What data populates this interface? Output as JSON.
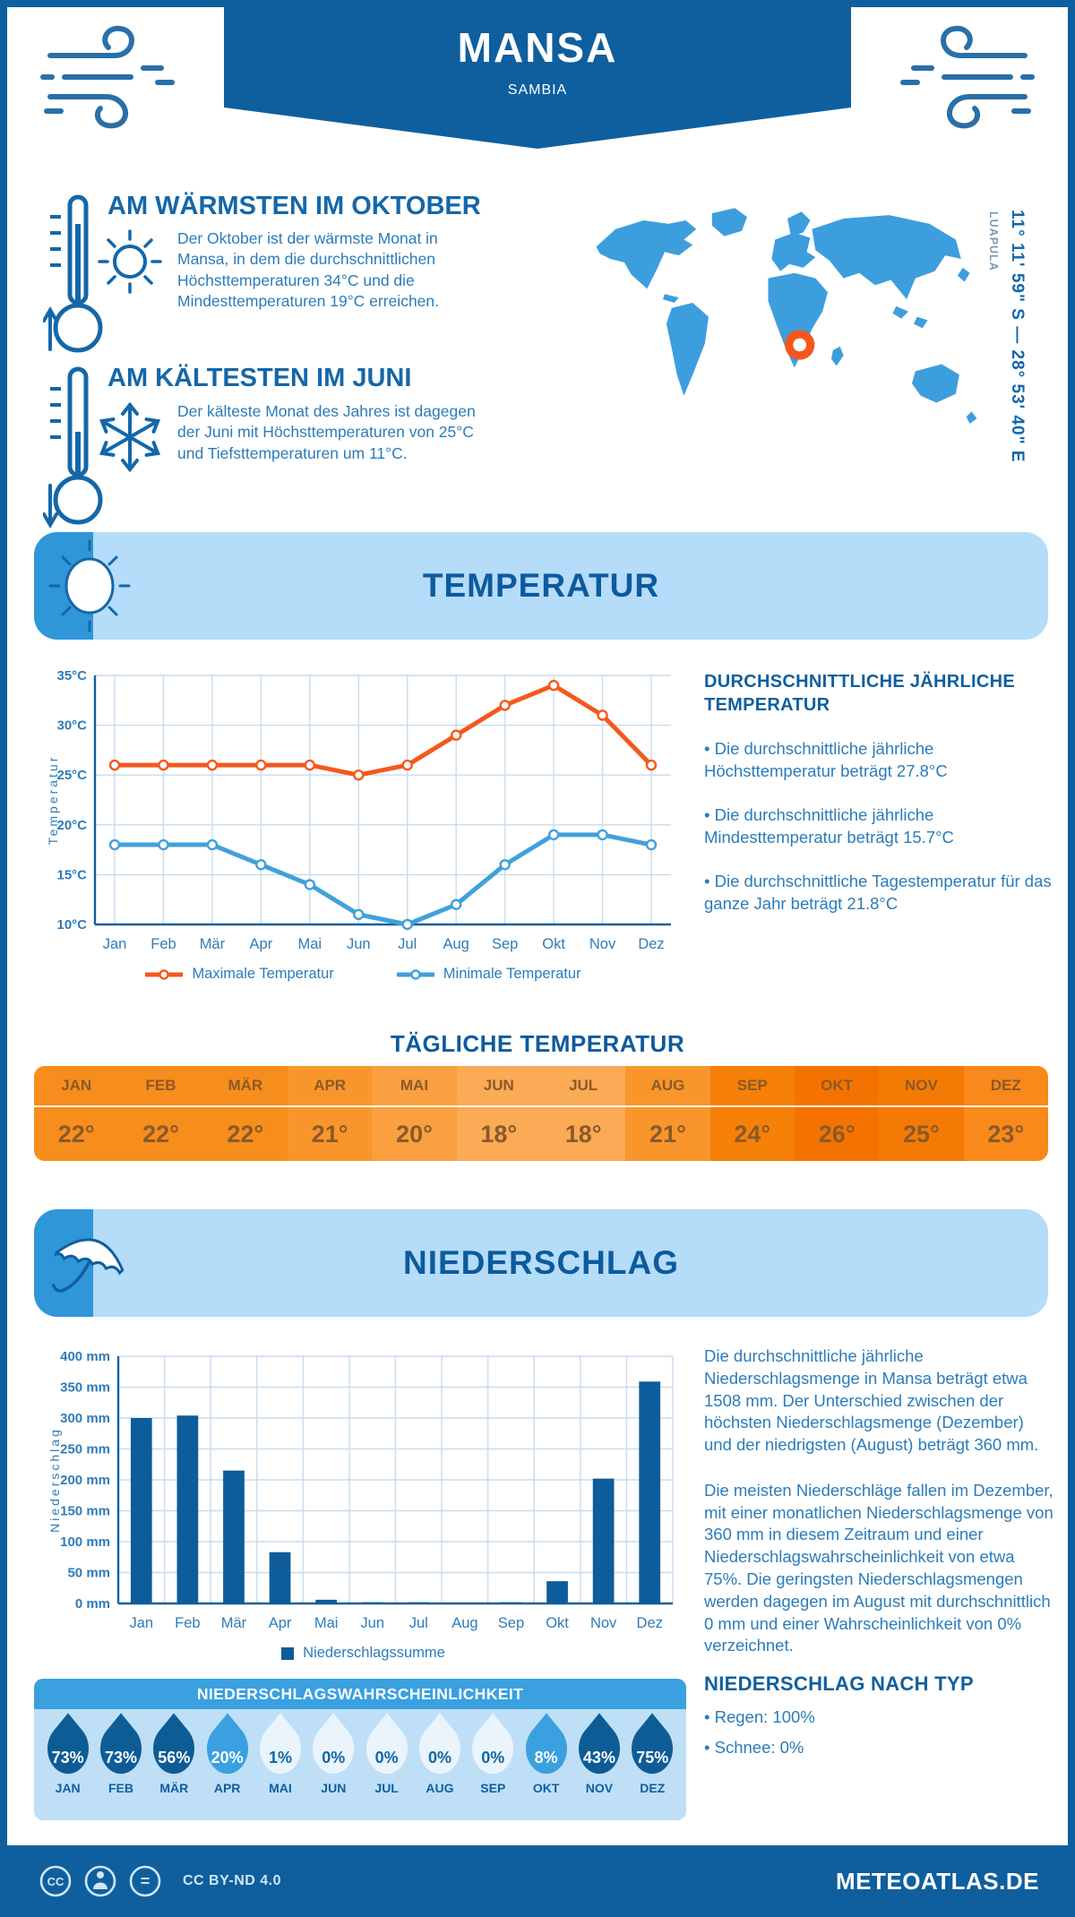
{
  "header": {
    "title": "MANSA",
    "subtitle": "SAMBIA"
  },
  "warmest": {
    "title": "AM WÄRMSTEN IM OKTOBER",
    "text": "Der Oktober ist der wärmste Monat in Mansa, in dem die durchschnittlichen Höchsttemperaturen 34°C und die Mindesttemperaturen 19°C erreichen."
  },
  "coldest": {
    "title": "AM KÄLTESTEN IM JUNI",
    "text": "Der kälteste Monat des Jahres ist dagegen der Juni mit Höchsttemperaturen von 25°C und Tiefsttemperaturen um 11°C."
  },
  "map": {
    "coordinates": "11° 11' 59\" S — 28° 53' 40\" E",
    "region": "LUAPULA",
    "land_color": "#3d9ede",
    "marker_color": "#f4571c"
  },
  "sections": {
    "temperature": "TEMPERATUR",
    "precipitation": "NIEDERSCHLAG"
  },
  "annual": {
    "title": "DURCHSCHNITTLICHE JÄHRLICHE TEMPERATUR",
    "bullets": [
      "• Die durchschnittliche jährliche Höchsttemperatur beträgt 27.8°C",
      "• Die durchschnittliche jährliche Mindesttemperatur beträgt 15.7°C",
      "• Die durchschnittliche Tagestemperatur für das ganze Jahr beträgt 21.8°C"
    ]
  },
  "daily": {
    "title": "TÄGLICHE TEMPERATUR",
    "months": [
      "JAN",
      "FEB",
      "MÄR",
      "APR",
      "MAI",
      "JUN",
      "JUL",
      "AUG",
      "SEP",
      "OKT",
      "NOV",
      "DEZ"
    ],
    "values": [
      "22°",
      "22°",
      "22°",
      "21°",
      "20°",
      "18°",
      "18°",
      "21°",
      "24°",
      "26°",
      "25°",
      "23°"
    ],
    "colors": [
      "#f78d1d",
      "#f78d1d",
      "#f78d1d",
      "#f8962c",
      "#faa041",
      "#fbaa55",
      "#fbaa55",
      "#f8962c",
      "#f68008",
      "#f47300",
      "#f57a04",
      "#f8891a"
    ]
  },
  "precip_text": {
    "p1": "Die durchschnittliche jährliche Niederschlagsmenge in Mansa beträgt etwa 1508 mm. Der Unterschied zwischen der höchsten Niederschlagsmenge (Dezember) und der niedrigsten (August) beträgt 360 mm.",
    "p2": "Die meisten Niederschläge fallen im Dezember, mit einer monatlichen Niederschlagsmenge von 360 mm in diesem Zeitraum und einer Niederschlagswahrscheinlichkeit von etwa 75%. Die geringsten Niederschlagsmengen werden dagegen im August mit durchschnittlich 0 mm und einer Wahrscheinlichkeit von 0% verzeichnet.",
    "type_title": "NIEDERSCHLAG NACH TYP",
    "type_bullets": [
      "• Regen: 100%",
      "• Schnee: 0%"
    ]
  },
  "probability": {
    "title": "NIEDERSCHLAGSWAHRSCHEINLICHKEIT",
    "months": [
      "JAN",
      "FEB",
      "MÄR",
      "APR",
      "MAI",
      "JUN",
      "JUL",
      "AUG",
      "SEP",
      "OKT",
      "NOV",
      "DEZ"
    ],
    "values": [
      "73%",
      "73%",
      "56%",
      "20%",
      "1%",
      "0%",
      "0%",
      "0%",
      "0%",
      "8%",
      "43%",
      "75%"
    ],
    "fills": [
      "#0e5c96",
      "#0e5c96",
      "#0e5c96",
      "#3aa0df",
      "#e9f4fc",
      "#e9f4fc",
      "#e9f4fc",
      "#e9f4fc",
      "#e9f4fc",
      "#3aa0df",
      "#0e5c96",
      "#0e5c96"
    ],
    "text_colors": [
      "#ffffff",
      "#ffffff",
      "#ffffff",
      "#ffffff",
      "#1166a5",
      "#1166a5",
      "#1166a5",
      "#1166a5",
      "#1166a5",
      "#ffffff",
      "#ffffff",
      "#ffffff"
    ]
  },
  "footer": {
    "license": "CC BY-ND 4.0",
    "site": "METEOATLAS.DE"
  },
  "colors": {
    "primary": "#0f5f9e",
    "heading": "#1467a9",
    "body_text": "#2b7cba",
    "banner_bg": "#b5dcf8",
    "banner_accent": "#2f96d8",
    "grid": "#c8dcee"
  },
  "chart_data": [
    {
      "type": "line",
      "x": [
        "Jan",
        "Feb",
        "Mär",
        "Apr",
        "Mai",
        "Jun",
        "Jul",
        "Aug",
        "Sep",
        "Okt",
        "Nov",
        "Dez"
      ],
      "ylabel": "Temperatur",
      "ylim": [
        10,
        35
      ],
      "yticks": [
        10,
        15,
        20,
        25,
        30,
        35
      ],
      "ytick_suffix": "°C",
      "grid": true,
      "legend_position": "bottom",
      "series": [
        {
          "name": "Maximale Temperatur",
          "color": "#f4581d",
          "values": [
            26,
            26,
            26,
            26,
            26,
            25,
            26,
            29,
            32,
            34,
            31,
            26
          ]
        },
        {
          "name": "Minimale Temperatur",
          "color": "#41a0dc",
          "values": [
            18,
            18,
            18,
            16,
            14,
            11,
            10,
            12,
            16,
            19,
            19,
            18
          ]
        }
      ]
    },
    {
      "type": "bar",
      "categories": [
        "Jan",
        "Feb",
        "Mär",
        "Apr",
        "Mai",
        "Jun",
        "Jul",
        "Aug",
        "Sep",
        "Okt",
        "Nov",
        "Dez"
      ],
      "values": [
        300,
        304,
        215,
        83,
        6,
        2,
        2,
        0,
        2,
        36,
        202,
        359
      ],
      "ylabel": "Niederschlag",
      "ylim": [
        0,
        400
      ],
      "yticks": [
        0,
        50,
        100,
        150,
        200,
        250,
        300,
        350,
        400
      ],
      "ytick_suffix": " mm",
      "grid": true,
      "bar_color": "#0e5c99",
      "legend": "Niederschlagssumme"
    }
  ]
}
